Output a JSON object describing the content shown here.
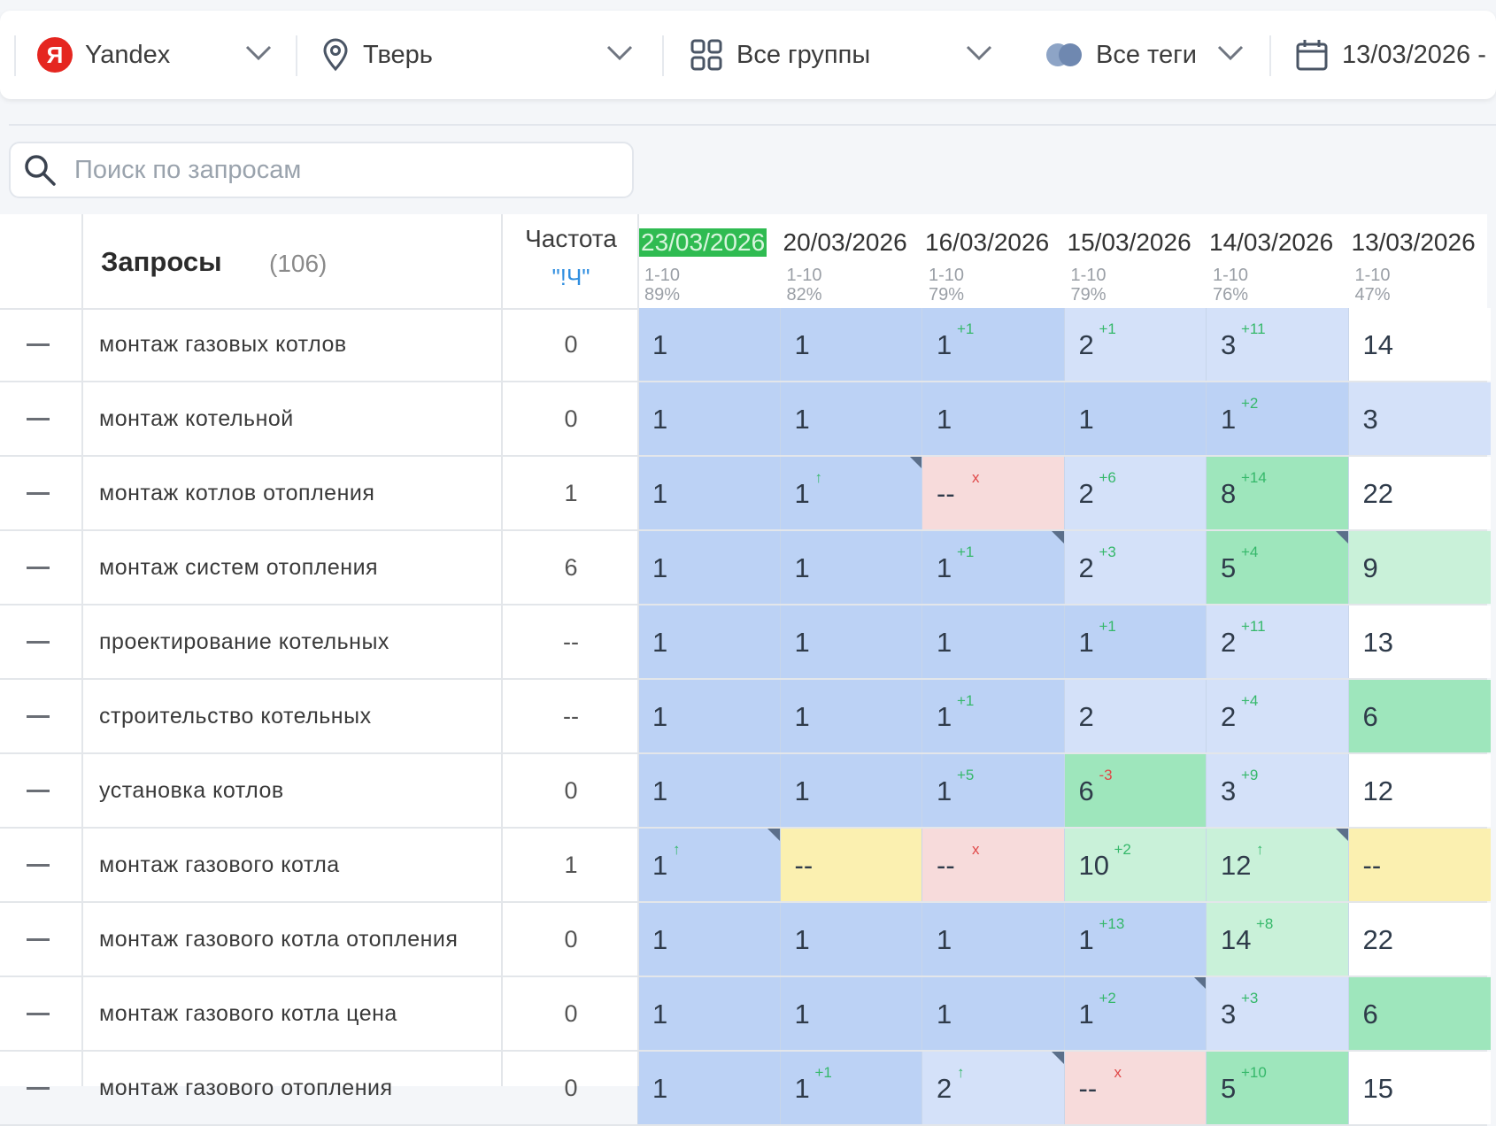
{
  "filters": {
    "engine": "Yandex",
    "region": "Тверь",
    "groups": "Все группы",
    "tags": "Все теги",
    "date": "13/03/2026 -"
  },
  "search": {
    "placeholder": "Поиск по запросам"
  },
  "table": {
    "title": "Запросы",
    "count": "(106)",
    "freq_label": "Частота",
    "freq_sub": "\"!Ч\"",
    "dates": [
      {
        "date": "23/03/2026",
        "range": "1-10",
        "pct": "89%"
      },
      {
        "date": "20/03/2026",
        "range": "1-10",
        "pct": "82%"
      },
      {
        "date": "16/03/2026",
        "range": "1-10",
        "pct": "79%"
      },
      {
        "date": "15/03/2026",
        "range": "1-10",
        "pct": "79%"
      },
      {
        "date": "14/03/2026",
        "range": "1-10",
        "pct": "76%"
      },
      {
        "date": "13/03/2026",
        "range": "1-10",
        "pct": "47%"
      }
    ],
    "rows": [
      {
        "query": "монтаж газовых котлов",
        "freq": "0",
        "cells": [
          {
            "v": "1",
            "d": "",
            "c": "blue"
          },
          {
            "v": "1",
            "d": "",
            "c": "blue"
          },
          {
            "v": "1",
            "d": "+1",
            "c": "blue"
          },
          {
            "v": "2",
            "d": "+1",
            "c": "lblue"
          },
          {
            "v": "3",
            "d": "+11",
            "c": "lblue"
          },
          {
            "v": "14",
            "d": "",
            "c": "white"
          }
        ]
      },
      {
        "query": "монтаж котельной",
        "freq": "0",
        "cells": [
          {
            "v": "1",
            "d": "",
            "c": "blue"
          },
          {
            "v": "1",
            "d": "",
            "c": "blue"
          },
          {
            "v": "1",
            "d": "",
            "c": "blue"
          },
          {
            "v": "1",
            "d": "",
            "c": "blue"
          },
          {
            "v": "1",
            "d": "+2",
            "c": "blue"
          },
          {
            "v": "3",
            "d": "",
            "c": "lblue"
          }
        ]
      },
      {
        "query": "монтаж котлов отопления",
        "freq": "1",
        "cells": [
          {
            "v": "1",
            "d": "",
            "c": "blue"
          },
          {
            "v": "1",
            "d": "↑",
            "c": "blue"
          },
          {
            "v": "--",
            "d": "x",
            "c": "pink"
          },
          {
            "v": "2",
            "d": "+6",
            "c": "lblue"
          },
          {
            "v": "8",
            "d": "+14",
            "c": "green"
          },
          {
            "v": "22",
            "d": "",
            "c": "white"
          }
        ]
      },
      {
        "query": "монтаж систем отопления",
        "freq": "6",
        "cells": [
          {
            "v": "1",
            "d": "",
            "c": "blue"
          },
          {
            "v": "1",
            "d": "",
            "c": "blue"
          },
          {
            "v": "1",
            "d": "+1",
            "c": "blue"
          },
          {
            "v": "2",
            "d": "+3",
            "c": "lblue"
          },
          {
            "v": "5",
            "d": "+4",
            "c": "green"
          },
          {
            "v": "9",
            "d": "",
            "c": "lgreen"
          }
        ]
      },
      {
        "query": "проектирование котельных",
        "freq": "--",
        "cells": [
          {
            "v": "1",
            "d": "",
            "c": "blue"
          },
          {
            "v": "1",
            "d": "",
            "c": "blue"
          },
          {
            "v": "1",
            "d": "",
            "c": "blue"
          },
          {
            "v": "1",
            "d": "+1",
            "c": "blue"
          },
          {
            "v": "2",
            "d": "+11",
            "c": "lblue"
          },
          {
            "v": "13",
            "d": "",
            "c": "white"
          }
        ]
      },
      {
        "query": "строительство котельных",
        "freq": "--",
        "cells": [
          {
            "v": "1",
            "d": "",
            "c": "blue"
          },
          {
            "v": "1",
            "d": "",
            "c": "blue"
          },
          {
            "v": "1",
            "d": "+1",
            "c": "blue"
          },
          {
            "v": "2",
            "d": "",
            "c": "lblue"
          },
          {
            "v": "2",
            "d": "+4",
            "c": "lblue"
          },
          {
            "v": "6",
            "d": "",
            "c": "green"
          }
        ]
      },
      {
        "query": "установка котлов",
        "freq": "0",
        "cells": [
          {
            "v": "1",
            "d": "",
            "c": "blue"
          },
          {
            "v": "1",
            "d": "",
            "c": "blue"
          },
          {
            "v": "1",
            "d": "+5",
            "c": "blue"
          },
          {
            "v": "6",
            "d": "-3",
            "c": "green"
          },
          {
            "v": "3",
            "d": "+9",
            "c": "lblue"
          },
          {
            "v": "12",
            "d": "",
            "c": "white"
          }
        ]
      },
      {
        "query": "монтаж газового котла",
        "freq": "1",
        "cells": [
          {
            "v": "1",
            "d": "↑",
            "c": "blue"
          },
          {
            "v": "--",
            "d": "",
            "c": "yellow"
          },
          {
            "v": "--",
            "d": "x",
            "c": "pink"
          },
          {
            "v": "10",
            "d": "+2",
            "c": "lgreen"
          },
          {
            "v": "12",
            "d": "↑",
            "c": "lgreen"
          },
          {
            "v": "--",
            "d": "",
            "c": "yellow"
          }
        ]
      },
      {
        "query": "монтаж газового котла отопления",
        "freq": "0",
        "cells": [
          {
            "v": "1",
            "d": "",
            "c": "blue"
          },
          {
            "v": "1",
            "d": "",
            "c": "blue"
          },
          {
            "v": "1",
            "d": "",
            "c": "blue"
          },
          {
            "v": "1",
            "d": "+13",
            "c": "blue"
          },
          {
            "v": "14",
            "d": "+8",
            "c": "lgreen"
          },
          {
            "v": "22",
            "d": "",
            "c": "white"
          }
        ]
      },
      {
        "query": "монтаж газового котла цена",
        "freq": "0",
        "cells": [
          {
            "v": "1",
            "d": "",
            "c": "blue"
          },
          {
            "v": "1",
            "d": "",
            "c": "blue"
          },
          {
            "v": "1",
            "d": "",
            "c": "blue"
          },
          {
            "v": "1",
            "d": "+2",
            "c": "blue"
          },
          {
            "v": "3",
            "d": "+3",
            "c": "lblue"
          },
          {
            "v": "6",
            "d": "",
            "c": "green"
          }
        ]
      },
      {
        "query": "монтаж газового отопления",
        "freq": "0",
        "cells": [
          {
            "v": "1",
            "d": "",
            "c": "blue"
          },
          {
            "v": "1",
            "d": "+1",
            "c": "blue"
          },
          {
            "v": "2",
            "d": "↑",
            "c": "lblue"
          },
          {
            "v": "--",
            "d": "x",
            "c": "pink"
          },
          {
            "v": "5",
            "d": "+10",
            "c": "green"
          },
          {
            "v": "15",
            "d": "",
            "c": "white"
          }
        ]
      }
    ]
  }
}
